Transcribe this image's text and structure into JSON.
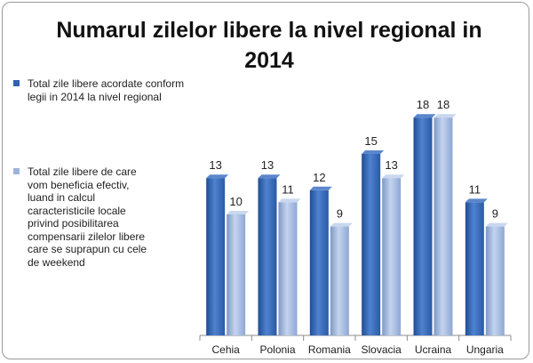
{
  "chart_data": {
    "type": "bar",
    "title_line1": "Numarul zilelor libere la nivel regional in",
    "title_line2": "2014",
    "categories": [
      "Cehia",
      "Polonia",
      "Romania",
      "Slovacia",
      "Ucraina",
      "Ungaria"
    ],
    "series": [
      {
        "name": "Total zile libere acordate conform\nlegii in 2014 la nivel regional",
        "values": [
          13,
          13,
          12,
          15,
          18,
          11
        ],
        "color": "#2f63b0"
      },
      {
        "name": "Total zile libere de care\nvom beneficia efectiv,\nluand in calcul\ncaracteristicile locale\nprivind posibilitarea\ncompensarii zilelor libere\ncare se suprapun cu cele\nde weekend",
        "values": [
          10,
          11,
          9,
          13,
          18,
          9
        ],
        "color": "#9db4de"
      }
    ],
    "ylim": [
      0,
      18
    ],
    "grid": false,
    "legend_position": "left",
    "data_labels": true
  }
}
